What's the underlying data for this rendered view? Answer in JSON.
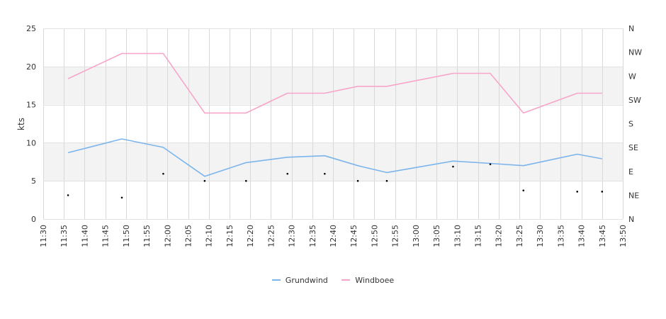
{
  "chart_data": {
    "type": "line",
    "ylabel": "kts",
    "ylim": [
      0,
      25
    ],
    "yticks": [
      "0",
      "5",
      "10",
      "15",
      "20",
      "25"
    ],
    "y2_ticks": [
      "N",
      "NE",
      "E",
      "SE",
      "S",
      "SW",
      "W",
      "NW",
      "N"
    ],
    "x_start": "11:30",
    "x_end": "13:50",
    "x_ticks": [
      "11:30",
      "11:35",
      "11:40",
      "11:45",
      "11:50",
      "11:55",
      "12:00",
      "12:05",
      "12:10",
      "12:15",
      "12:20",
      "12:25",
      "12:30",
      "12:35",
      "12:40",
      "12:45",
      "12:50",
      "12:55",
      "13:00",
      "13:05",
      "13:10",
      "13:15",
      "13:20",
      "13:25",
      "13:30",
      "13:35",
      "13:40",
      "13:45",
      "13:50"
    ],
    "grid": true,
    "legend_position": "bottom-center",
    "series": [
      {
        "name": "Grundwind",
        "color": "#7cb5ec",
        "points": [
          [
            "11:36",
            8.7
          ],
          [
            "11:49",
            10.5
          ],
          [
            "11:59",
            9.4
          ],
          [
            "12:09",
            5.6
          ],
          [
            "12:19",
            7.4
          ],
          [
            "12:29",
            8.1
          ],
          [
            "12:38",
            8.3
          ],
          [
            "12:46",
            7.0
          ],
          [
            "12:53",
            6.1
          ],
          [
            "13:09",
            7.6
          ],
          [
            "13:18",
            7.3
          ],
          [
            "13:26",
            7.0
          ],
          [
            "13:39",
            8.5
          ],
          [
            "13:45",
            7.9
          ]
        ]
      },
      {
        "name": "Windboee",
        "color": "#f7a6c9",
        "points": [
          [
            "11:36",
            18.4
          ],
          [
            "11:49",
            21.7
          ],
          [
            "11:59",
            21.7
          ],
          [
            "12:09",
            13.9
          ],
          [
            "12:19",
            13.9
          ],
          [
            "12:29",
            16.5
          ],
          [
            "12:38",
            16.5
          ],
          [
            "12:46",
            17.4
          ],
          [
            "12:53",
            17.4
          ],
          [
            "13:09",
            19.1
          ],
          [
            "13:18",
            19.1
          ],
          [
            "13:26",
            13.9
          ],
          [
            "13:39",
            16.5
          ],
          [
            "13:45",
            16.5
          ]
        ]
      }
    ],
    "direction_points": [
      [
        "11:36",
        1.0
      ],
      [
        "11:49",
        0.9
      ],
      [
        "11:59",
        1.9
      ],
      [
        "12:09",
        1.6
      ],
      [
        "12:19",
        1.6
      ],
      [
        "12:29",
        1.9
      ],
      [
        "12:38",
        1.9
      ],
      [
        "12:46",
        1.6
      ],
      [
        "12:53",
        1.6
      ],
      [
        "13:09",
        2.2
      ],
      [
        "13:18",
        2.3
      ],
      [
        "13:26",
        1.2
      ],
      [
        "13:39",
        1.15
      ],
      [
        "13:45",
        1.15
      ]
    ]
  }
}
